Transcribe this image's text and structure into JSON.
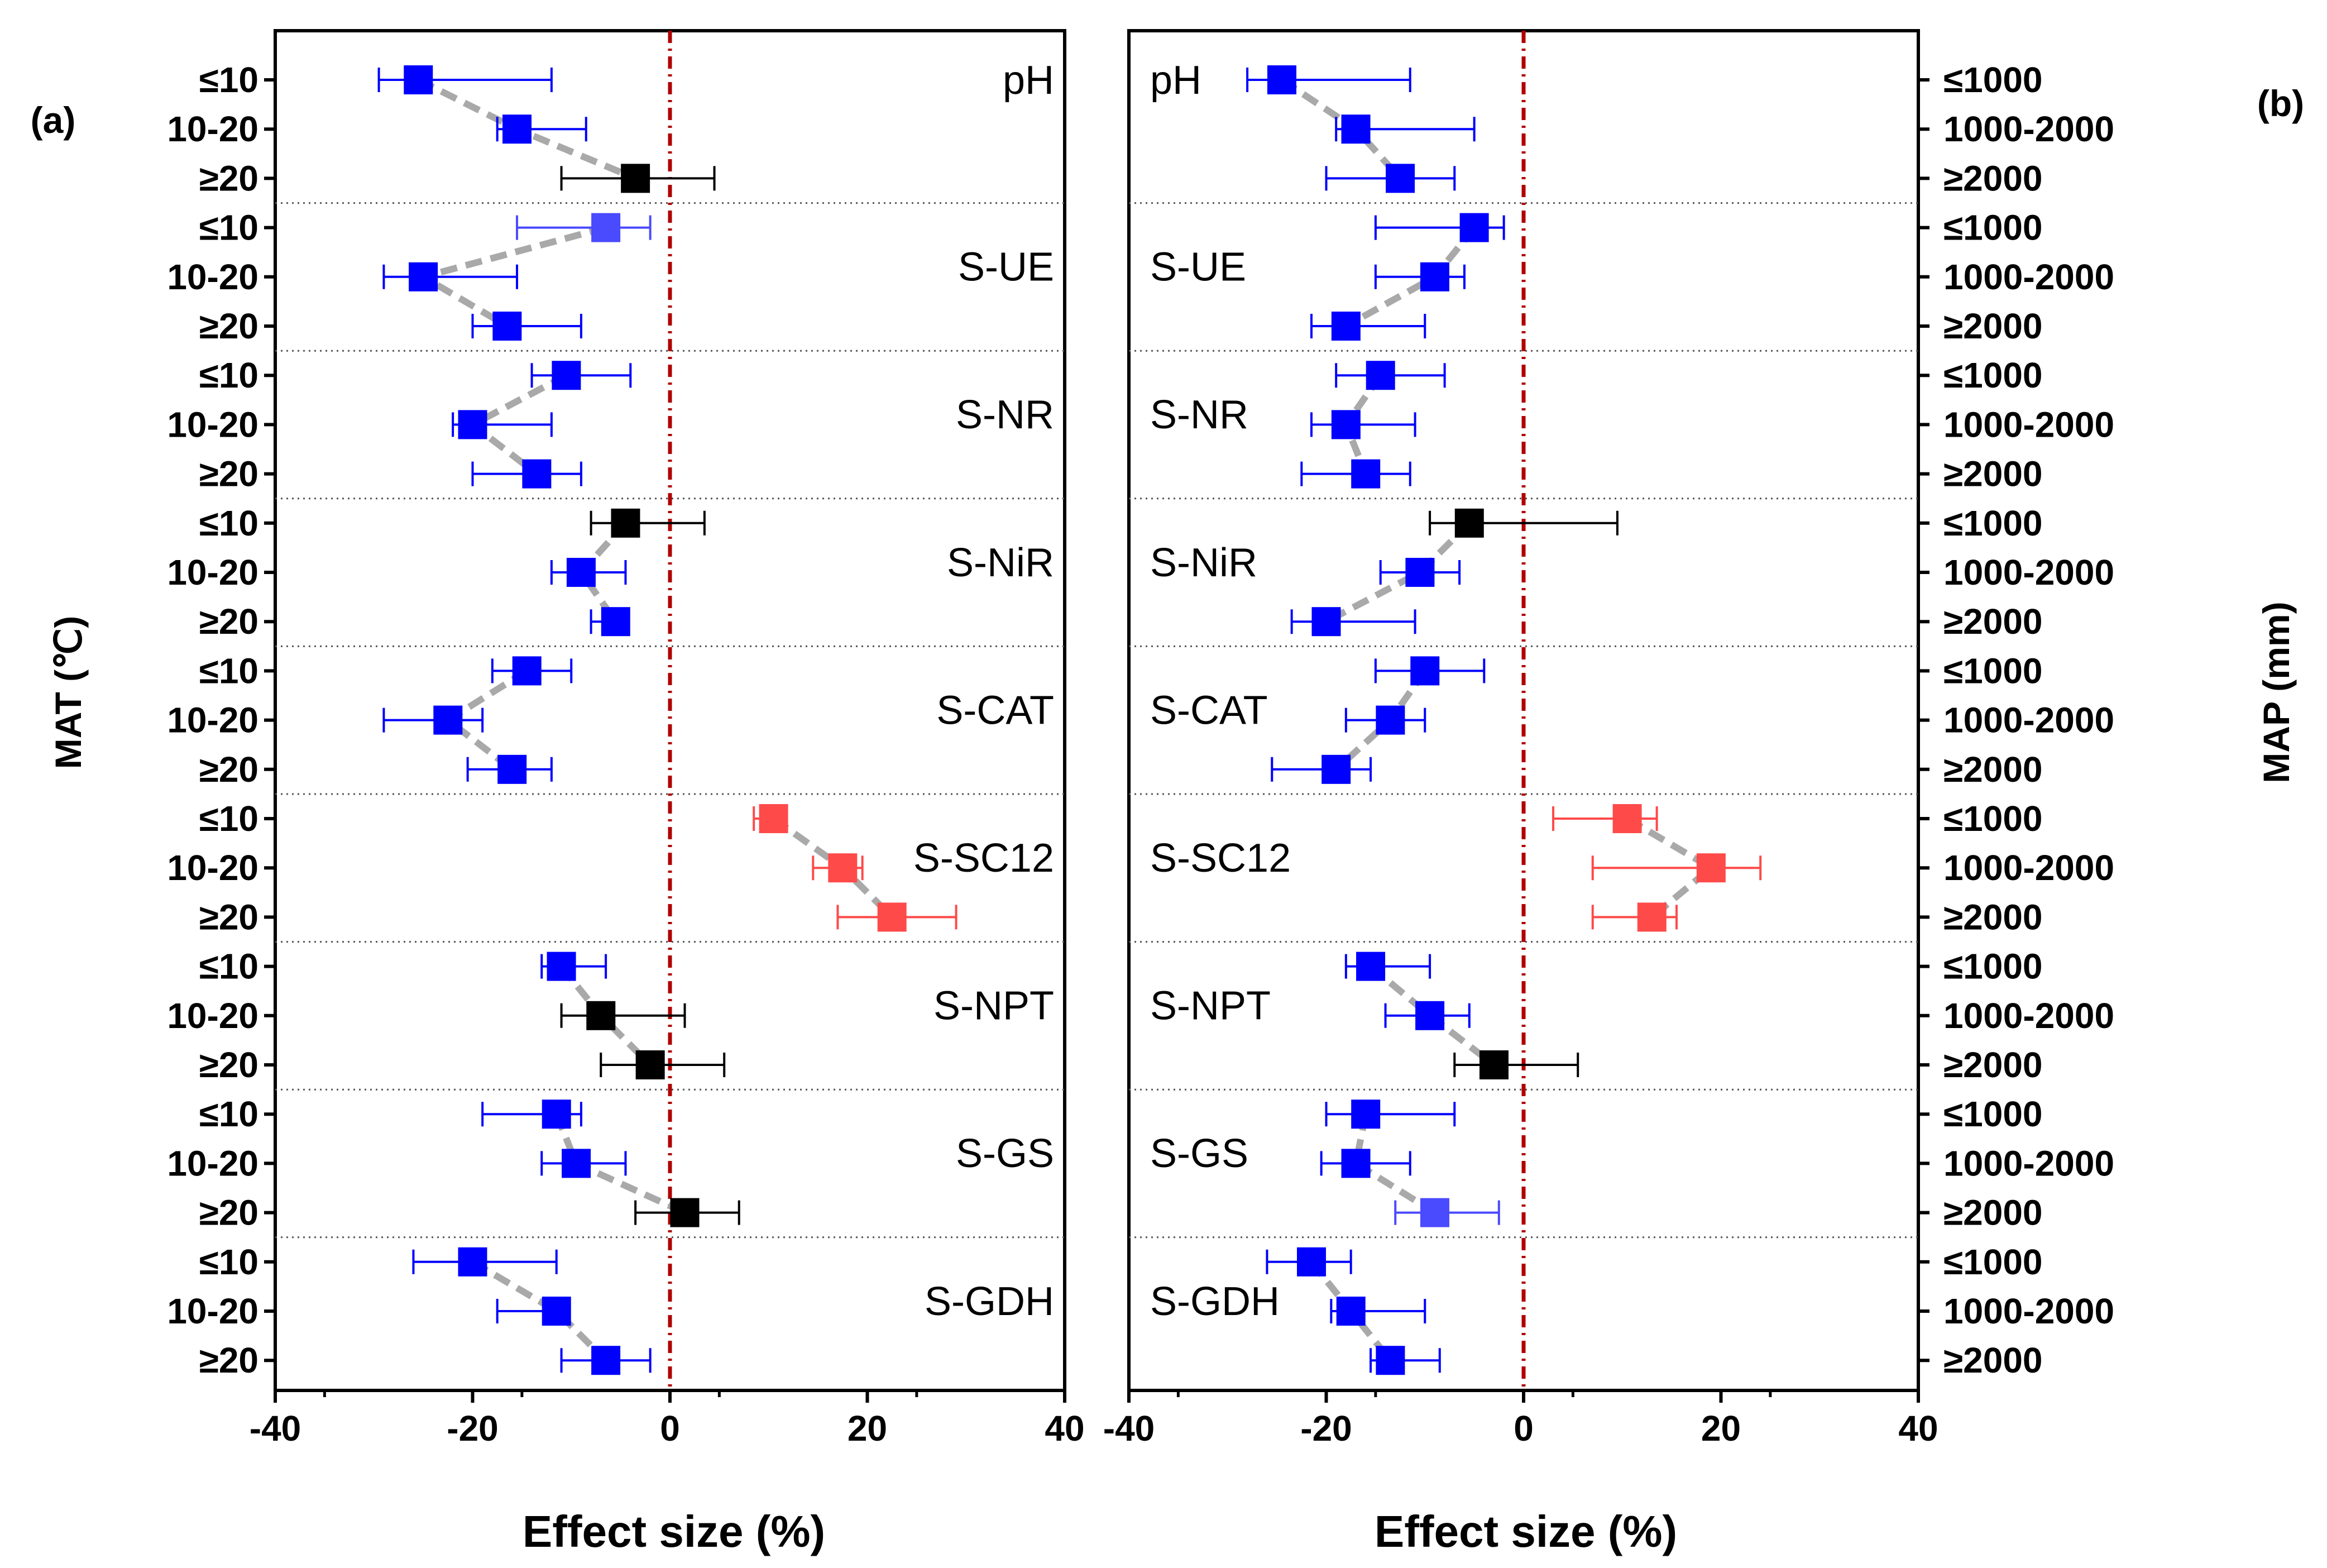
{
  "chart_data": {
    "type": "forest",
    "colors": {
      "negative": "#0000ff",
      "negative_light": "#4a4aff",
      "positive": "#ff4a4a",
      "nonsignificant": "#000000",
      "connector": "#a9a9a9",
      "zero_line": "#b00000"
    },
    "groups": [
      "pH",
      "S-UE",
      "S-NR",
      "S-NiR",
      "S-CAT",
      "S-SC12",
      "S-NPT",
      "S-GS",
      "S-GDH"
    ],
    "panels": [
      {
        "id": "a",
        "panel_label": "(a)",
        "xlabel": "Effect size (%)",
        "ylabel": "MAT (℃)",
        "xlim": [
          -40,
          40
        ],
        "xticks": [
          "-40",
          "-20",
          "0",
          "20",
          "40"
        ],
        "categories": [
          "≤10",
          "10-20",
          "≥20"
        ],
        "series": [
          {
            "group": "pH",
            "points": [
              {
                "mean": -25.5,
                "lo": -29.5,
                "hi": -12,
                "sig": "neg"
              },
              {
                "mean": -15.5,
                "lo": -17.5,
                "hi": -8.5,
                "sig": "neg"
              },
              {
                "mean": -3.5,
                "lo": -11,
                "hi": 4.5,
                "sig": "ns"
              }
            ]
          },
          {
            "group": "S-UE",
            "points": [
              {
                "mean": -6.5,
                "lo": -15.5,
                "hi": -2,
                "sig": "neg_light"
              },
              {
                "mean": -25,
                "lo": -29,
                "hi": -15.5,
                "sig": "neg"
              },
              {
                "mean": -16.5,
                "lo": -20,
                "hi": -9,
                "sig": "neg"
              }
            ]
          },
          {
            "group": "S-NR",
            "points": [
              {
                "mean": -10.5,
                "lo": -14,
                "hi": -4,
                "sig": "neg"
              },
              {
                "mean": -20,
                "lo": -22,
                "hi": -12,
                "sig": "neg"
              },
              {
                "mean": -13.5,
                "lo": -20,
                "hi": -9,
                "sig": "neg"
              }
            ]
          },
          {
            "group": "S-NiR",
            "points": [
              {
                "mean": -4.5,
                "lo": -8,
                "hi": 3.5,
                "sig": "ns"
              },
              {
                "mean": -9,
                "lo": -12,
                "hi": -4.5,
                "sig": "neg"
              },
              {
                "mean": -5.5,
                "lo": -8,
                "hi": -4.5,
                "sig": "neg"
              }
            ]
          },
          {
            "group": "S-CAT",
            "points": [
              {
                "mean": -14.5,
                "lo": -18,
                "hi": -10,
                "sig": "neg"
              },
              {
                "mean": -22.5,
                "lo": -29,
                "hi": -19,
                "sig": "neg"
              },
              {
                "mean": -16,
                "lo": -20.5,
                "hi": -12,
                "sig": "neg"
              }
            ]
          },
          {
            "group": "S-SC12",
            "points": [
              {
                "mean": 10.5,
                "lo": 8.5,
                "hi": 11.5,
                "sig": "pos"
              },
              {
                "mean": 17.5,
                "lo": 14.5,
                "hi": 19.5,
                "sig": "pos"
              },
              {
                "mean": 22.5,
                "lo": 17,
                "hi": 29,
                "sig": "pos"
              }
            ]
          },
          {
            "group": "S-NPT",
            "points": [
              {
                "mean": -11,
                "lo": -13,
                "hi": -6.5,
                "sig": "neg"
              },
              {
                "mean": -7,
                "lo": -11,
                "hi": 1.5,
                "sig": "ns"
              },
              {
                "mean": -2,
                "lo": -7,
                "hi": 5.5,
                "sig": "ns"
              }
            ]
          },
          {
            "group": "S-GS",
            "points": [
              {
                "mean": -11.5,
                "lo": -19,
                "hi": -9,
                "sig": "neg"
              },
              {
                "mean": -9.5,
                "lo": -13,
                "hi": -4.5,
                "sig": "neg"
              },
              {
                "mean": 1.5,
                "lo": -3.5,
                "hi": 7,
                "sig": "ns"
              }
            ]
          },
          {
            "group": "S-GDH",
            "points": [
              {
                "mean": -20,
                "lo": -26,
                "hi": -11.5,
                "sig": "neg"
              },
              {
                "mean": -11.5,
                "lo": -17.5,
                "hi": -11,
                "sig": "neg"
              },
              {
                "mean": -6.5,
                "lo": -11,
                "hi": -2,
                "sig": "neg"
              }
            ]
          }
        ]
      },
      {
        "id": "b",
        "panel_label": "(b)",
        "xlabel": "Effect size (%)",
        "ylabel": "MAP (mm)",
        "xlim": [
          -40,
          40
        ],
        "xticks": [
          "-40",
          "-20",
          "0",
          "20",
          "40"
        ],
        "categories": [
          "≤1000",
          "1000-2000",
          "≥2000"
        ],
        "series": [
          {
            "group": "pH",
            "points": [
              {
                "mean": -24.5,
                "lo": -28,
                "hi": -11.5,
                "sig": "neg"
              },
              {
                "mean": -17,
                "lo": -19,
                "hi": -5,
                "sig": "neg"
              },
              {
                "mean": -12.5,
                "lo": -20,
                "hi": -7,
                "sig": "neg"
              }
            ]
          },
          {
            "group": "S-UE",
            "points": [
              {
                "mean": -5,
                "lo": -15,
                "hi": -2,
                "sig": "neg"
              },
              {
                "mean": -9,
                "lo": -15,
                "hi": -6,
                "sig": "neg"
              },
              {
                "mean": -18,
                "lo": -21.5,
                "hi": -10,
                "sig": "neg"
              }
            ]
          },
          {
            "group": "S-NR",
            "points": [
              {
                "mean": -14.5,
                "lo": -19,
                "hi": -8,
                "sig": "neg"
              },
              {
                "mean": -18,
                "lo": -21.5,
                "hi": -11,
                "sig": "neg"
              },
              {
                "mean": -16,
                "lo": -22.5,
                "hi": -11.5,
                "sig": "neg"
              }
            ]
          },
          {
            "group": "S-NiR",
            "points": [
              {
                "mean": -5.5,
                "lo": -9.5,
                "hi": 9.5,
                "sig": "ns"
              },
              {
                "mean": -10.5,
                "lo": -14.5,
                "hi": -6.5,
                "sig": "neg"
              },
              {
                "mean": -20,
                "lo": -23.5,
                "hi": -11,
                "sig": "neg"
              }
            ]
          },
          {
            "group": "S-CAT",
            "points": [
              {
                "mean": -10,
                "lo": -15,
                "hi": -4,
                "sig": "neg"
              },
              {
                "mean": -13.5,
                "lo": -18,
                "hi": -10,
                "sig": "neg"
              },
              {
                "mean": -19,
                "lo": -25.5,
                "hi": -15.5,
                "sig": "neg"
              }
            ]
          },
          {
            "group": "S-SC12",
            "points": [
              {
                "mean": 10.5,
                "lo": 3,
                "hi": 13.5,
                "sig": "pos"
              },
              {
                "mean": 19,
                "lo": 7,
                "hi": 24,
                "sig": "pos"
              },
              {
                "mean": 13,
                "lo": 7,
                "hi": 15.5,
                "sig": "pos"
              }
            ]
          },
          {
            "group": "S-NPT",
            "points": [
              {
                "mean": -15.5,
                "lo": -18,
                "hi": -9.5,
                "sig": "neg"
              },
              {
                "mean": -9.5,
                "lo": -14,
                "hi": -5.5,
                "sig": "neg"
              },
              {
                "mean": -3,
                "lo": -7,
                "hi": 5.5,
                "sig": "ns"
              }
            ]
          },
          {
            "group": "S-GS",
            "points": [
              {
                "mean": -16,
                "lo": -20,
                "hi": -7,
                "sig": "neg"
              },
              {
                "mean": -17,
                "lo": -20.5,
                "hi": -11.5,
                "sig": "neg"
              },
              {
                "mean": -9,
                "lo": -13,
                "hi": -2.5,
                "sig": "neg_light"
              }
            ]
          },
          {
            "group": "S-GDH",
            "points": [
              {
                "mean": -21.5,
                "lo": -26,
                "hi": -17.5,
                "sig": "neg"
              },
              {
                "mean": -17.5,
                "lo": -19.5,
                "hi": -10,
                "sig": "neg"
              },
              {
                "mean": -13.5,
                "lo": -15.5,
                "hi": -8.5,
                "sig": "neg"
              }
            ]
          }
        ]
      }
    ]
  }
}
